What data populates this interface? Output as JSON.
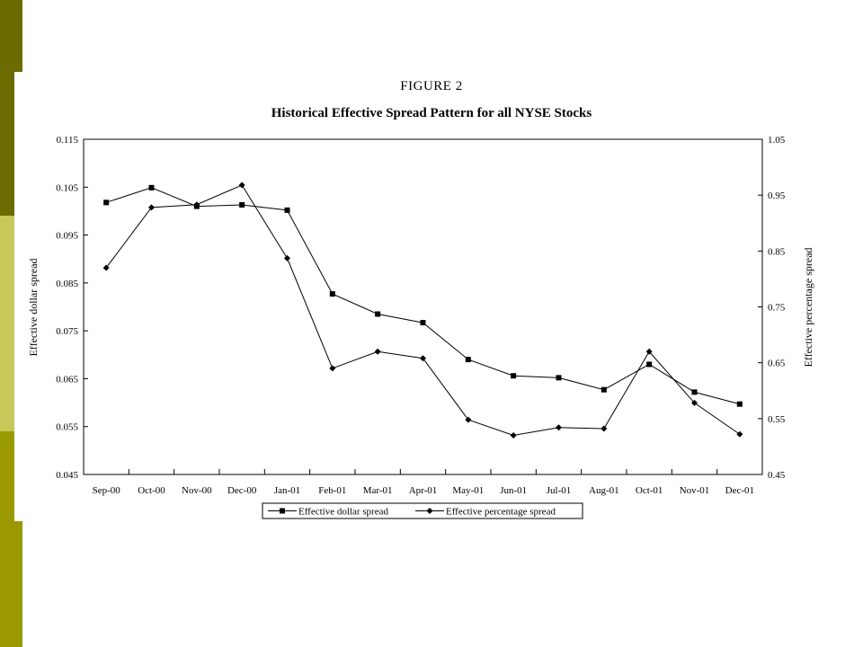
{
  "slide": {
    "sidebar_colors": [
      "#6b6b00",
      "#ffffff",
      "#c8c85a",
      "#9a9a00"
    ]
  },
  "figure": {
    "title": "FIGURE 2",
    "subtitle": "Historical Effective Spread Pattern for all NYSE Stocks"
  },
  "chart_data": {
    "type": "line",
    "categories": [
      "Sep-00",
      "Oct-00",
      "Nov-00",
      "Dec-00",
      "Jan-01",
      "Feb-01",
      "Mar-01",
      "Apr-01",
      "May-01",
      "Jun-01",
      "Jul-01",
      "Aug-01",
      "Oct-01",
      "Nov-01",
      "Dec-01"
    ],
    "series": [
      {
        "name": "Effective dollar spread",
        "axis": "left",
        "marker": "square",
        "values": [
          0.1018,
          0.1049,
          0.101,
          0.1013,
          0.1002,
          0.0827,
          0.0785,
          0.0767,
          0.069,
          0.0656,
          0.0652,
          0.0627,
          0.068,
          0.0622,
          0.0597
        ]
      },
      {
        "name": "Effective percentage spread",
        "axis": "right",
        "marker": "diamond",
        "values": [
          0.82,
          0.928,
          0.933,
          0.968,
          0.837,
          0.64,
          0.67,
          0.658,
          0.548,
          0.52,
          0.534,
          0.532,
          0.67,
          0.578,
          0.522
        ]
      }
    ],
    "ylabel_left": "Effective dollar spread",
    "ylabel_right": "Effective percentage spread",
    "ylim_left": [
      0.045,
      0.115
    ],
    "ylim_right": [
      0.45,
      1.05
    ],
    "yticks_left": [
      "0.115",
      "0.105",
      "0.095",
      "0.085",
      "0.075",
      "0.065",
      "0.055",
      "0.045"
    ],
    "yticks_right": [
      "1.05",
      "0.95",
      "0.85",
      "0.75",
      "0.65",
      "0.55",
      "0.45"
    ],
    "legend_position": "bottom",
    "grid": false
  }
}
